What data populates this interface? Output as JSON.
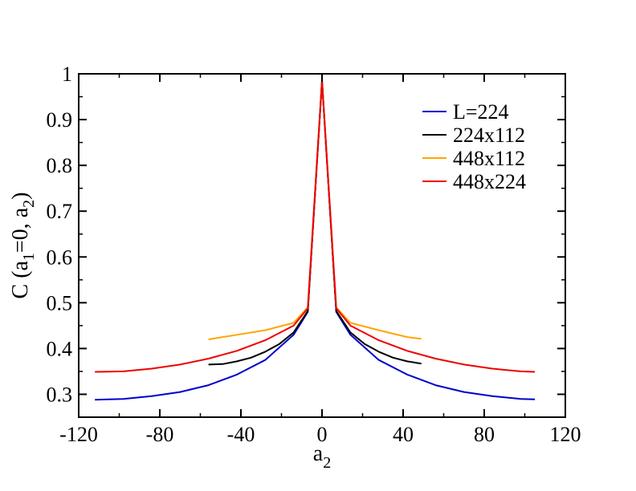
{
  "chart_data": {
    "type": "line",
    "title": "",
    "xlabel": "a",
    "xlabel_sub": "2",
    "ylabel_parts": [
      "C (a",
      "1",
      "=0, a",
      "2",
      ")"
    ],
    "xlim": [
      -120,
      120
    ],
    "ylim": [
      0.25,
      1.0
    ],
    "x_ticks": [
      -120,
      -80,
      -40,
      0,
      40,
      80,
      120
    ],
    "x_tick_labels": [
      "-120",
      "-80",
      "-40",
      "0",
      "40",
      "80",
      "120"
    ],
    "y_ticks": [
      0.3,
      0.4,
      0.5,
      0.6,
      0.7,
      0.8,
      0.9,
      1.0
    ],
    "y_tick_labels": [
      "0.3",
      "0.4",
      "0.5",
      "0.6",
      "0.7",
      "0.8",
      "0.9",
      "1"
    ],
    "grid": false,
    "legend_position": "top-right",
    "series": [
      {
        "name": "L=224",
        "color": "#0000cc",
        "x": [
          -112,
          -98,
          -84,
          -70,
          -56,
          -42,
          -28,
          -14,
          -7,
          0,
          7,
          14,
          28,
          42,
          56,
          70,
          84,
          98,
          105
        ],
        "y": [
          0.288,
          0.29,
          0.296,
          0.305,
          0.32,
          0.343,
          0.375,
          0.43,
          0.48,
          0.985,
          0.48,
          0.43,
          0.375,
          0.343,
          0.32,
          0.305,
          0.296,
          0.29,
          0.289
        ]
      },
      {
        "name": "224x112",
        "color": "#000000",
        "x": [
          -56,
          -49,
          -42,
          -35,
          -28,
          -21,
          -14,
          -7,
          0,
          7,
          14,
          21,
          28,
          35,
          42,
          49
        ],
        "y": [
          0.365,
          0.366,
          0.372,
          0.38,
          0.393,
          0.41,
          0.435,
          0.482,
          0.985,
          0.482,
          0.435,
          0.41,
          0.393,
          0.38,
          0.372,
          0.367
        ]
      },
      {
        "name": "448x112",
        "color": "#ffa500",
        "x": [
          -56,
          -42,
          -28,
          -14,
          -7,
          0,
          7,
          14,
          28,
          42,
          49
        ],
        "y": [
          0.42,
          0.43,
          0.44,
          0.456,
          0.49,
          0.985,
          0.49,
          0.456,
          0.44,
          0.425,
          0.421
        ]
      },
      {
        "name": "448x224",
        "color": "#ee0000",
        "x": [
          -112,
          -98,
          -84,
          -70,
          -56,
          -42,
          -28,
          -14,
          -7,
          0,
          7,
          14,
          28,
          42,
          56,
          70,
          84,
          98,
          105
        ],
        "y": [
          0.349,
          0.35,
          0.356,
          0.365,
          0.378,
          0.395,
          0.418,
          0.45,
          0.488,
          0.985,
          0.488,
          0.45,
          0.418,
          0.395,
          0.378,
          0.365,
          0.356,
          0.35,
          0.349
        ]
      }
    ]
  }
}
